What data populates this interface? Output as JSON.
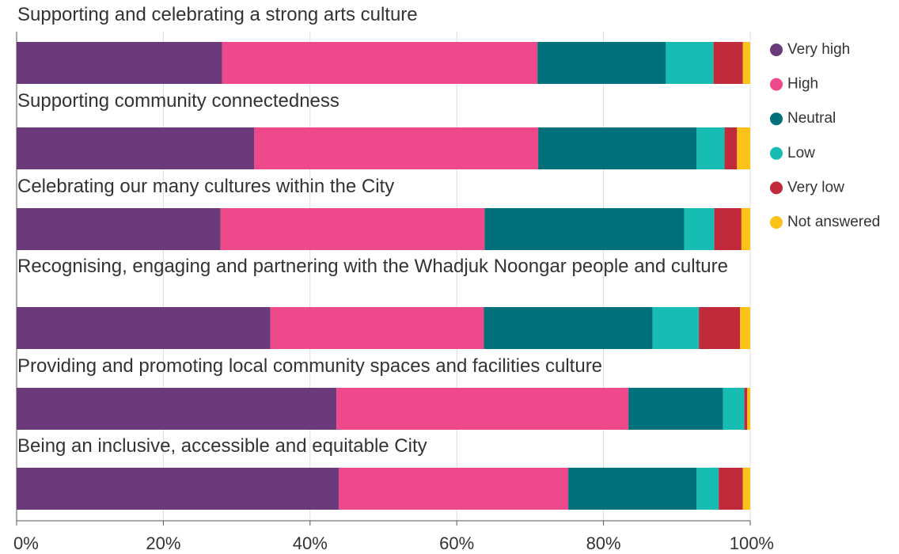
{
  "chart_data": {
    "type": "stacked-bar-horizontal",
    "categories": [
      "Supporting and celebrating a strong arts culture",
      "Supporting community connectedness",
      "Celebrating our many cultures within the City",
      "Recognising, engaging and partnering with the Whadjuk Noongar people and culture",
      "Providing and promoting local community spaces and facilities culture",
      "Being an inclusive, accessible and equitable City"
    ],
    "series": [
      {
        "name": "Very high",
        "color": "#6b3a7a",
        "values": [
          28,
          32.4,
          27.8,
          34.6,
          43.6,
          43.9
        ]
      },
      {
        "name": "High",
        "color": "#ee4a8b",
        "values": [
          43,
          38.7,
          36.0,
          29.1,
          39.8,
          31.3
        ]
      },
      {
        "name": "Neutral",
        "color": "#00717a",
        "values": [
          17.5,
          21.6,
          27.2,
          23.0,
          12.9,
          17.5
        ]
      },
      {
        "name": "Low",
        "color": "#17bcb3",
        "values": [
          6.5,
          3.8,
          4.1,
          6.3,
          2.9,
          3.0
        ]
      },
      {
        "name": "Very low",
        "color": "#c02a3a",
        "values": [
          4,
          1.7,
          3.7,
          5.6,
          0.4,
          3.3
        ]
      },
      {
        "name": "Not answered",
        "color": "#fbc21a",
        "values": [
          1,
          1.8,
          1.2,
          1.4,
          0.4,
          1.0
        ]
      }
    ],
    "xlim": [
      0,
      100
    ],
    "xticks": [
      {
        "value": 0,
        "label": "0%"
      },
      {
        "value": 20,
        "label": "20%"
      },
      {
        "value": 40,
        "label": "40%"
      },
      {
        "value": 60,
        "label": "60%"
      },
      {
        "value": 80,
        "label": "80%"
      },
      {
        "value": 100,
        "label": "100%"
      }
    ],
    "grid": true,
    "legend": "right"
  }
}
